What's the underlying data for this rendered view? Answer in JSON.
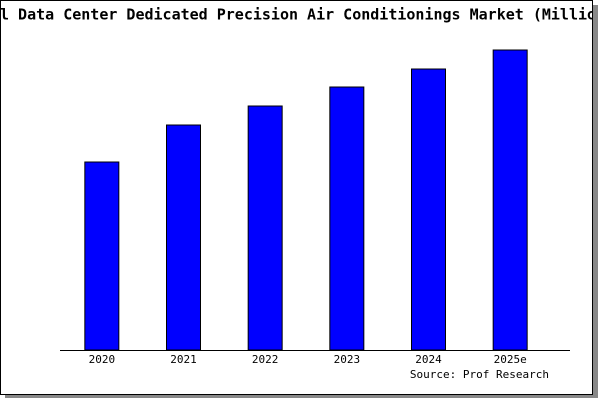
{
  "chart_data": {
    "type": "bar",
    "title": "l Data Center Dedicated Precision Air Conditionings Market (Millio",
    "categories": [
      "2020",
      "2021",
      "2022",
      "2023",
      "2024",
      "2025e"
    ],
    "values": [
      188,
      225,
      244,
      263,
      281,
      300
    ],
    "color": "#0000ff",
    "ylim": [
      0,
      300
    ],
    "source": "Source: Prof Research"
  }
}
